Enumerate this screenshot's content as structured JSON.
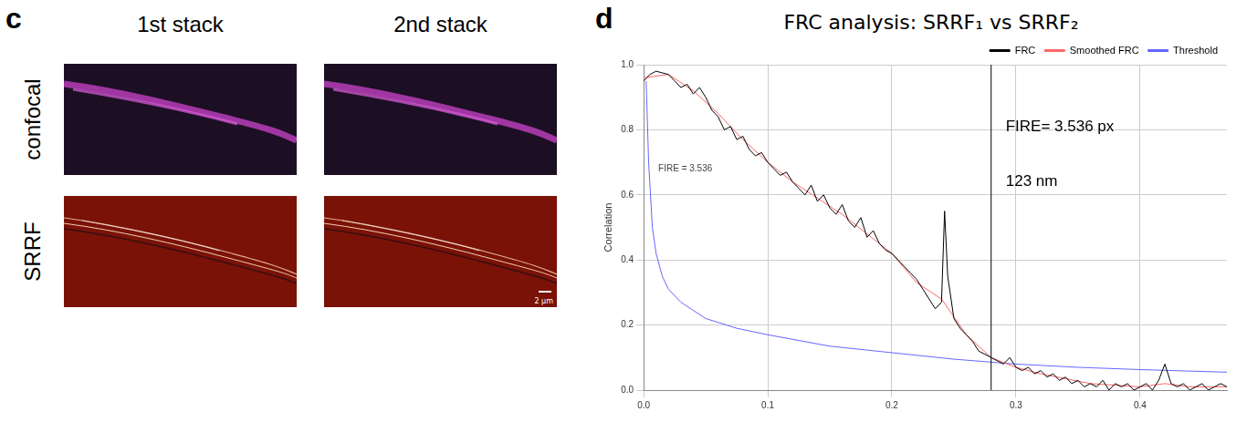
{
  "panel_c": {
    "letter": "c",
    "columns": [
      "1st stack",
      "2nd stack"
    ],
    "rows": [
      "confocal",
      "SRRF"
    ],
    "scale_bar": "2 µm"
  },
  "chart_data": {
    "letter": "d",
    "type": "line",
    "title": "FRC analysis: SRRF₁ vs SRRF₂",
    "y_label": "Correlation",
    "annotations": [
      "FIRE = 3.536",
      "FIRE= 3.536 px",
      "123 nm"
    ],
    "vertical_line": {
      "x": 0.28,
      "color": "#000000"
    },
    "xlim": [
      0,
      0.47
    ],
    "xticks": [
      {
        "value": 0,
        "label": "0.0"
      },
      0.1,
      0.2,
      0.3,
      0.4
    ],
    "ylim": [
      0,
      1
    ],
    "yticks": [
      {
        "value": 0,
        "label": "0.0"
      },
      0.2,
      0.4,
      0.6,
      0.8,
      {
        "value": 1,
        "label": "1.0"
      }
    ],
    "grid": true,
    "legend": "top-right",
    "series": [
      {
        "name": "FRC",
        "color": "#000000",
        "x": [
          0,
          0.005,
          0.01,
          0.015,
          0.02,
          0.025,
          0.03,
          0.035,
          0.04,
          0.045,
          0.05,
          0.055,
          0.06,
          0.065,
          0.07,
          0.075,
          0.08,
          0.085,
          0.09,
          0.095,
          0.1,
          0.105,
          0.11,
          0.115,
          0.12,
          0.125,
          0.13,
          0.135,
          0.14,
          0.145,
          0.15,
          0.155,
          0.16,
          0.165,
          0.17,
          0.175,
          0.18,
          0.185,
          0.19,
          0.195,
          0.2,
          0.205,
          0.21,
          0.215,
          0.22,
          0.225,
          0.23,
          0.235,
          0.24,
          0.2425,
          0.245,
          0.25,
          0.255,
          0.26,
          0.265,
          0.27,
          0.275,
          0.28,
          0.285,
          0.29,
          0.295,
          0.3,
          0.305,
          0.31,
          0.315,
          0.32,
          0.325,
          0.33,
          0.335,
          0.34,
          0.345,
          0.35,
          0.355,
          0.36,
          0.365,
          0.37,
          0.375,
          0.38,
          0.385,
          0.39,
          0.395,
          0.4,
          0.405,
          0.41,
          0.415,
          0.42,
          0.425,
          0.43,
          0.435,
          0.44,
          0.445,
          0.45,
          0.455,
          0.46,
          0.465,
          0.47
        ],
        "values": [
          0.95,
          0.97,
          0.98,
          0.975,
          0.97,
          0.95,
          0.93,
          0.94,
          0.91,
          0.93,
          0.9,
          0.86,
          0.84,
          0.8,
          0.81,
          0.77,
          0.78,
          0.74,
          0.72,
          0.73,
          0.7,
          0.68,
          0.66,
          0.67,
          0.64,
          0.62,
          0.6,
          0.63,
          0.58,
          0.6,
          0.56,
          0.54,
          0.57,
          0.52,
          0.5,
          0.53,
          0.47,
          0.49,
          0.45,
          0.43,
          0.42,
          0.4,
          0.38,
          0.36,
          0.34,
          0.31,
          0.28,
          0.25,
          0.27,
          0.55,
          0.35,
          0.22,
          0.19,
          0.17,
          0.15,
          0.12,
          0.11,
          0.1,
          0.09,
          0.08,
          0.1,
          0.07,
          0.06,
          0.07,
          0.05,
          0.06,
          0.04,
          0.05,
          0.03,
          0.04,
          0.02,
          0.03,
          0.01,
          0.02,
          0.01,
          0.03,
          0,
          0.02,
          0.01,
          0.02,
          0,
          0.01,
          0.02,
          0,
          0.03,
          0.08,
          0.02,
          0.01,
          0.02,
          0,
          0.01,
          0.02,
          0,
          0.01,
          0.02,
          0.01
        ]
      },
      {
        "name": "Smoothed FRC",
        "color": "#ff6666",
        "x": [
          0,
          0.02,
          0.04,
          0.06,
          0.08,
          0.1,
          0.12,
          0.14,
          0.16,
          0.18,
          0.2,
          0.22,
          0.24,
          0.26,
          0.28,
          0.3,
          0.32,
          0.34,
          0.36,
          0.38,
          0.4,
          0.42,
          0.44,
          0.47
        ],
        "values": [
          0.96,
          0.97,
          0.92,
          0.85,
          0.77,
          0.7,
          0.64,
          0.59,
          0.54,
          0.48,
          0.42,
          0.33,
          0.28,
          0.17,
          0.1,
          0.07,
          0.05,
          0.035,
          0.02,
          0.015,
          0.01,
          0.02,
          0.01,
          0.01
        ]
      },
      {
        "name": "Threshold",
        "color": "#6666ff",
        "x": [
          0.002,
          0.004,
          0.007,
          0.01,
          0.015,
          0.02,
          0.03,
          0.05,
          0.075,
          0.1,
          0.15,
          0.2,
          0.25,
          0.3,
          0.35,
          0.4,
          0.47
        ],
        "values": [
          0.95,
          0.7,
          0.5,
          0.42,
          0.35,
          0.31,
          0.27,
          0.22,
          0.19,
          0.17,
          0.135,
          0.115,
          0.095,
          0.08,
          0.07,
          0.063,
          0.055
        ]
      }
    ]
  }
}
